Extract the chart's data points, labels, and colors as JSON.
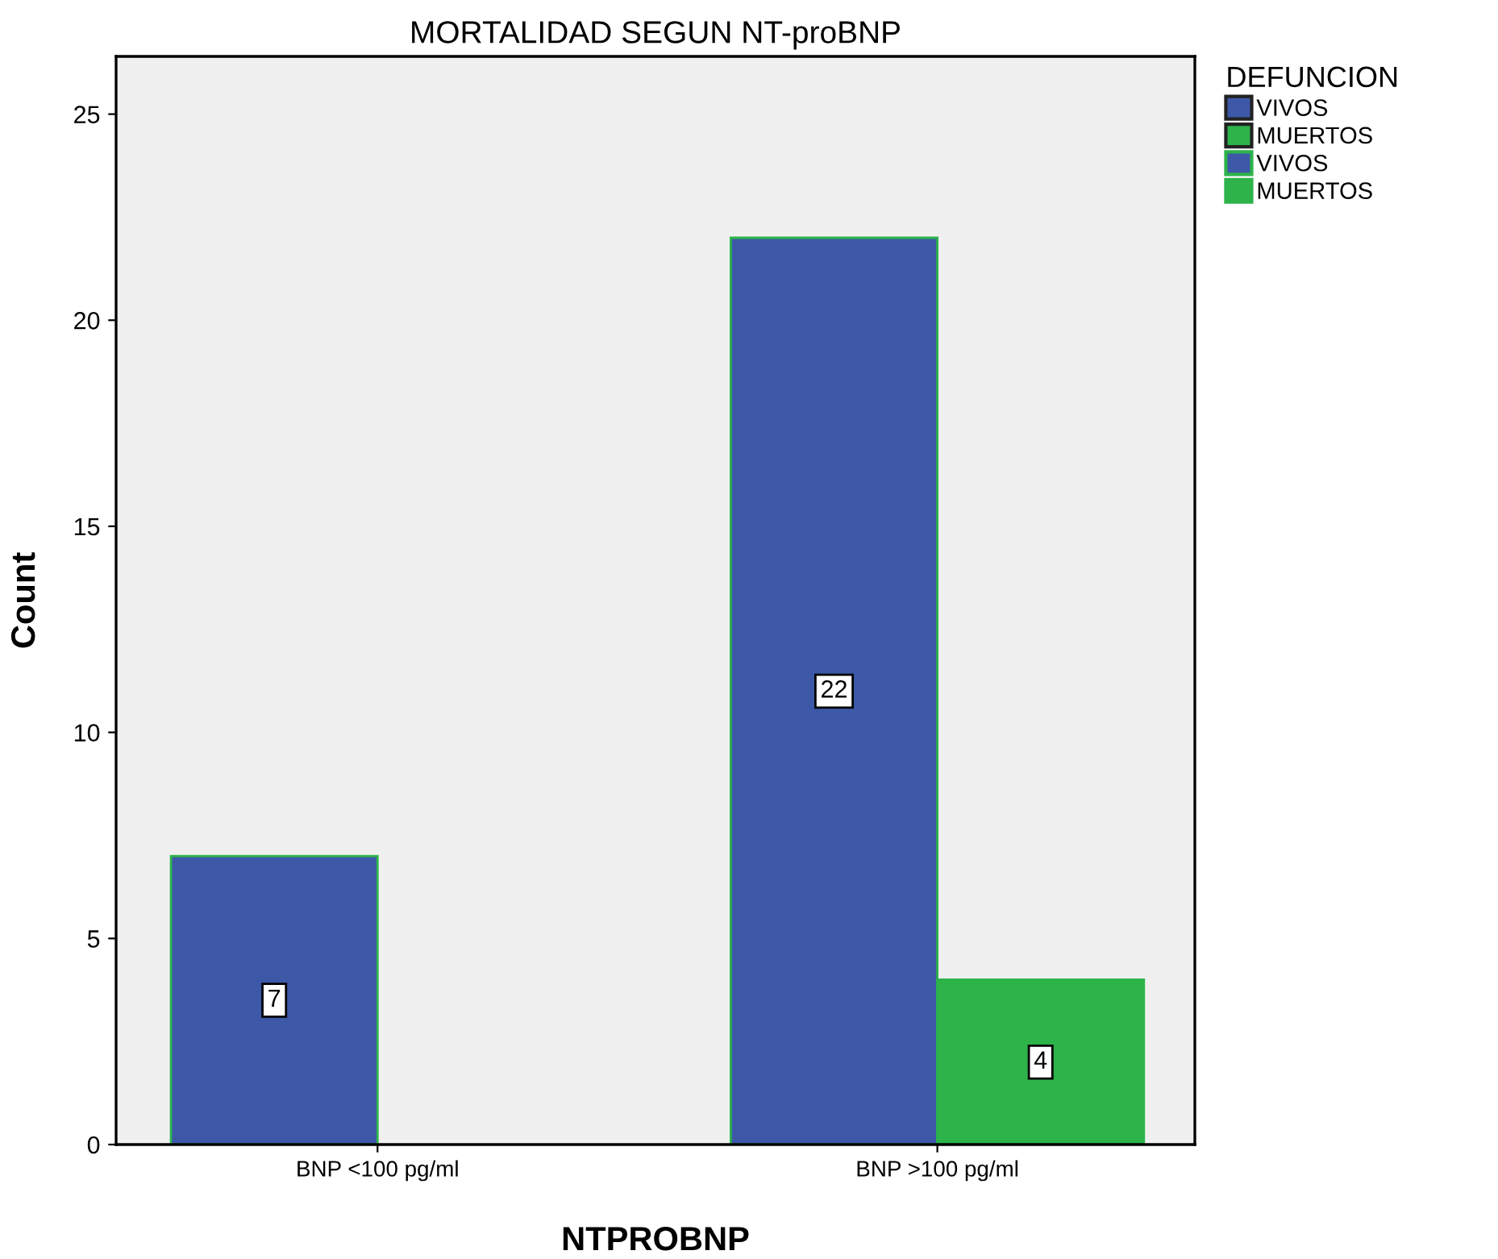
{
  "chart_data": {
    "type": "bar",
    "title": "MORTALIDAD SEGUN NT-proBNP",
    "xlabel": "NTPROBNP",
    "ylabel": "Count",
    "legend_title": "DEFUNCION",
    "categories": [
      "BNP <100 pg/ml",
      "BNP >100 pg/ml"
    ],
    "series": [
      {
        "name": "VIVOS",
        "color": "#3e58a8",
        "values": [
          null,
          null
        ]
      },
      {
        "name": "MUERTOS",
        "color": "#2db34a",
        "values": [
          null,
          null
        ]
      },
      {
        "name": "VIVOS",
        "color": "#3e58a8",
        "values": [
          7,
          22
        ]
      },
      {
        "name": "MUERTOS",
        "color": "#2db34a",
        "values": [
          null,
          4
        ]
      }
    ],
    "ylim": [
      0,
      26.4
    ],
    "yticks": [
      0,
      5,
      10,
      15,
      20,
      25
    ],
    "grid": false,
    "legend": "top right",
    "data_labels": true
  }
}
